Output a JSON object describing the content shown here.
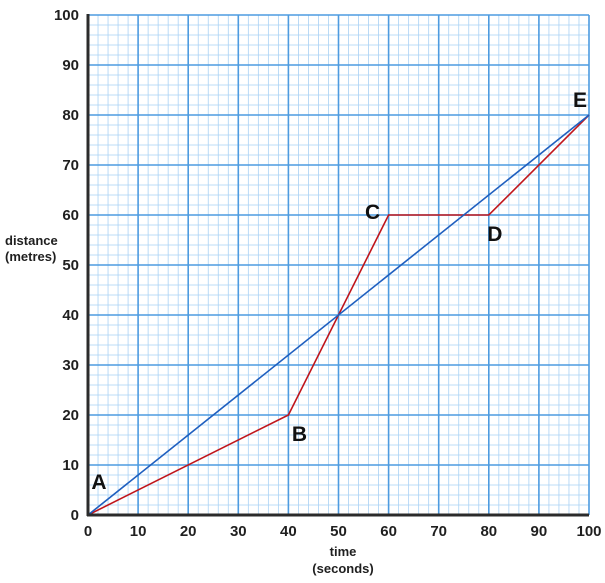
{
  "chart_data": {
    "type": "line",
    "xlabel": [
      "time",
      "(seconds)"
    ],
    "ylabel": [
      "distance",
      "(metres)"
    ],
    "xlim": [
      0,
      100
    ],
    "ylim": [
      0,
      100
    ],
    "x_ticks": [
      0,
      10,
      20,
      30,
      40,
      50,
      60,
      70,
      80,
      90,
      100
    ],
    "y_ticks": [
      0,
      10,
      20,
      30,
      40,
      50,
      60,
      70,
      80,
      90,
      100
    ],
    "grid": true,
    "series": [
      {
        "color": "#c0161c",
        "points": [
          [
            0,
            0
          ],
          [
            40,
            20
          ],
          [
            60,
            60
          ],
          [
            80,
            60
          ],
          [
            100,
            80
          ]
        ]
      },
      {
        "color": "#1f5fbf",
        "points": [
          [
            0,
            0
          ],
          [
            100,
            80
          ]
        ]
      }
    ],
    "point_labels": [
      {
        "text": "A",
        "x": 0,
        "y": 0
      },
      {
        "text": "B",
        "x": 40,
        "y": 20
      },
      {
        "text": "C",
        "x": 60,
        "y": 60
      },
      {
        "text": "D",
        "x": 80,
        "y": 60
      },
      {
        "text": "E",
        "x": 100,
        "y": 80
      }
    ],
    "colors": {
      "major_grid": "#4d9be0",
      "minor_grid": "#a9d2f5",
      "axis": "#2b2b2b"
    }
  }
}
